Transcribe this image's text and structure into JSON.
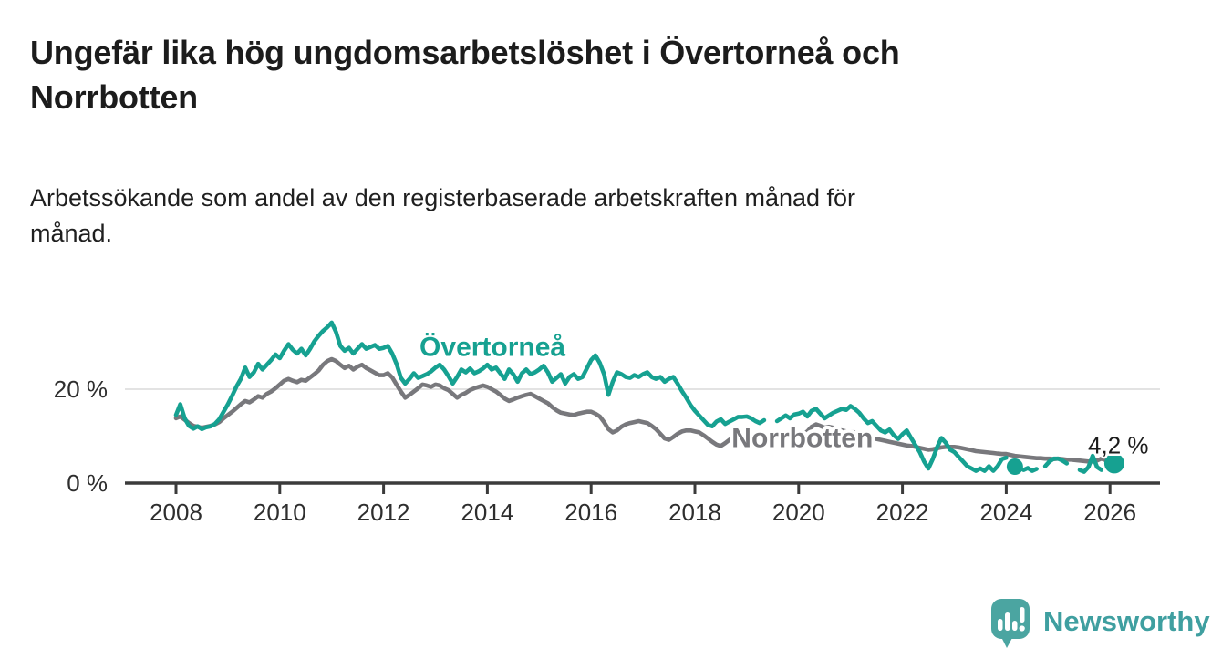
{
  "header": {
    "title": "Ungefär lika hög ungdomsarbetslöshet i Övertorneå och\nNorrbotten",
    "subtitle": "Arbetssökande som andel av den registerbaserade arbetskraften månad för\nmånad."
  },
  "footer": {
    "brand": "Newsworthy"
  },
  "colors": {
    "overtornea": "#16a191",
    "norrbotten": "#78787c",
    "axis": "#3b3b3b",
    "grid": "#dadada",
    "tick_text": "#2e2e2e",
    "annotation_text": "#1c1c1c",
    "logo": "#4ba5a1",
    "brand_text": "#3f9fa0"
  },
  "chart_data": {
    "type": "line",
    "title": "Ungefär lika hög ungdomsarbetslöshet i Övertorneå och Norrbotten",
    "xlabel": "",
    "ylabel": "",
    "unit": "%",
    "x_start_year": 2008.0,
    "step_months": 1,
    "x_ticks": [
      2008,
      2010,
      2012,
      2014,
      2016,
      2018,
      2020,
      2022,
      2024,
      2026
    ],
    "y_ticks": [
      {
        "value": 0,
        "label": "0 %"
      },
      {
        "value": 20,
        "label": "20 %"
      }
    ],
    "ylim": [
      0,
      39
    ],
    "grid": "horizontal-only",
    "legend_position": "inline-labels",
    "annotation": {
      "text": "4,2 %",
      "t": 2026.16,
      "v": 6.3
    },
    "series": [
      {
        "name": "Norrbotten",
        "key": "norrbotten",
        "color": "#78787c",
        "end_marker": false,
        "label": {
          "t": 2020.07,
          "v": 9.5
        },
        "values": [
          13.8,
          14.2,
          13.5,
          12.8,
          12.2,
          12.0,
          11.8,
          12.0,
          12.2,
          12.5,
          13.0,
          13.8,
          14.5,
          15.2,
          16.0,
          16.8,
          17.5,
          17.2,
          17.8,
          18.5,
          18.2,
          19.0,
          19.5,
          20.2,
          21.0,
          21.8,
          22.2,
          21.8,
          21.5,
          22.0,
          21.8,
          22.5,
          23.2,
          24.0,
          25.2,
          26.0,
          26.4,
          26.0,
          25.2,
          24.5,
          25.0,
          24.2,
          24.8,
          25.2,
          24.5,
          24.0,
          23.5,
          23.0,
          23.0,
          23.4,
          22.5,
          21.0,
          19.5,
          18.2,
          18.8,
          19.5,
          20.2,
          21.0,
          20.8,
          20.5,
          21.0,
          20.8,
          20.2,
          19.8,
          19.0,
          18.2,
          18.8,
          19.2,
          19.8,
          20.2,
          20.5,
          20.8,
          20.5,
          20.0,
          19.5,
          18.8,
          18.0,
          17.5,
          17.8,
          18.2,
          18.5,
          18.8,
          19.0,
          18.5,
          18.0,
          17.5,
          17.0,
          16.2,
          15.5,
          15.0,
          14.8,
          14.6,
          14.5,
          14.8,
          15.0,
          15.2,
          15.2,
          14.8,
          14.2,
          13.0,
          11.5,
          10.8,
          11.2,
          12.0,
          12.5,
          12.8,
          13.0,
          13.2,
          13.0,
          12.8,
          12.2,
          11.5,
          10.5,
          9.5,
          9.2,
          9.8,
          10.5,
          11.0,
          11.2,
          11.2,
          11.0,
          10.8,
          10.2,
          9.5,
          8.8,
          8.2,
          7.9,
          8.5,
          9.2,
          9.8,
          10.0,
          10.2,
          10.2,
          10.0,
          9.8,
          9.5,
          9.2,
          9.0,
          9.2,
          9.5,
          9.8,
          10.0,
          10.2,
          10.5,
          10.8,
          10.5,
          11.0,
          12.0,
          12.5,
          12.2,
          11.8,
          12.0,
          11.8,
          11.5,
          11.2,
          11.0,
          11.0,
          10.8,
          10.5,
          10.2,
          9.8,
          9.6,
          9.4,
          9.2,
          9.0,
          8.8,
          8.6,
          8.4,
          8.2,
          8.0,
          7.9,
          7.7,
          7.5,
          7.3,
          7.1,
          7.2,
          7.4,
          7.6,
          7.7,
          7.7,
          7.7,
          7.6,
          7.4,
          7.2,
          7.0,
          6.8,
          6.7,
          6.6,
          6.5,
          6.4,
          6.3,
          6.2,
          6.2,
          6.0,
          5.8,
          5.7,
          5.6,
          5.5,
          5.4,
          5.3,
          5.3,
          5.2,
          5.2,
          5.1,
          5.2,
          5.1,
          5.0,
          5.0,
          4.9,
          4.8,
          4.7,
          4.6,
          4.6,
          4.8,
          5.2,
          4.9,
          4.7,
          4.6
        ]
      },
      {
        "name": "Övertorneå",
        "key": "overtornea",
        "color": "#16a191",
        "end_marker": true,
        "label": {
          "t": 2014.1,
          "v": 28.9
        },
        "values": [
          14.5,
          16.8,
          13.8,
          12.2,
          11.6,
          12.1,
          11.5,
          11.9,
          12.1,
          12.6,
          13.6,
          15.2,
          16.8,
          18.6,
          20.6,
          22.2,
          24.6,
          22.6,
          23.6,
          25.4,
          24.2,
          25.2,
          26.2,
          27.4,
          26.6,
          28.2,
          29.6,
          28.4,
          27.6,
          28.6,
          27.2,
          28.6,
          30.2,
          31.4,
          32.4,
          33.2,
          34.2,
          32.2,
          29.2,
          28.2,
          28.8,
          27.6,
          28.6,
          29.6,
          28.6,
          29.0,
          29.4,
          28.6,
          28.8,
          29.2,
          27.6,
          25.4,
          22.4,
          21.2,
          22.2,
          23.4,
          22.4,
          22.8,
          23.2,
          23.8,
          24.6,
          25.2,
          24.2,
          22.8,
          21.2,
          22.6,
          24.2,
          23.6,
          24.4,
          23.4,
          23.8,
          24.4,
          25.2,
          24.2,
          24.6,
          23.4,
          22.2,
          24.2,
          23.2,
          21.6,
          23.4,
          24.2,
          23.2,
          23.6,
          24.2,
          25.0,
          23.6,
          21.6,
          22.4,
          23.2,
          21.2,
          22.6,
          23.2,
          22.2,
          22.6,
          24.4,
          26.2,
          27.2,
          25.6,
          23.2,
          18.8,
          21.6,
          23.6,
          23.2,
          22.6,
          22.4,
          23.0,
          22.6,
          23.2,
          23.6,
          22.6,
          22.2,
          22.6,
          21.6,
          22.2,
          22.6,
          21.2,
          19.6,
          18.2,
          16.6,
          15.4,
          14.4,
          13.4,
          12.4,
          12.1,
          13.1,
          13.6,
          12.6,
          13.1,
          13.6,
          14.1,
          14.1,
          14.2,
          13.8,
          13.2,
          12.8,
          13.4,
          null,
          null,
          13.2,
          13.8,
          14.4,
          13.8,
          14.6,
          14.8,
          15.2,
          14.2,
          15.4,
          15.8,
          14.8,
          13.8,
          14.4,
          15.0,
          15.4,
          15.8,
          15.6,
          16.4,
          15.8,
          15.0,
          13.8,
          12.8,
          13.2,
          12.2,
          11.2,
          10.8,
          11.4,
          10.2,
          9.4,
          10.4,
          11.2,
          9.6,
          8.1,
          6.6,
          4.6,
          3.1,
          5.1,
          7.6,
          9.6,
          8.6,
          7.1,
          6.6,
          5.6,
          4.6,
          3.6,
          3.1,
          2.6,
          3.1,
          2.6,
          3.6,
          2.6,
          3.6,
          5.1,
          5.4,
          null,
          3.5,
          null,
          2.8,
          3.2,
          2.6,
          3.0,
          null,
          3.6,
          4.6,
          5.2,
          5.2,
          4.8,
          4.2,
          null,
          null,
          2.8,
          2.4,
          3.4,
          5.8,
          3.4,
          2.8,
          null,
          null,
          4.2
        ]
      }
    ]
  }
}
